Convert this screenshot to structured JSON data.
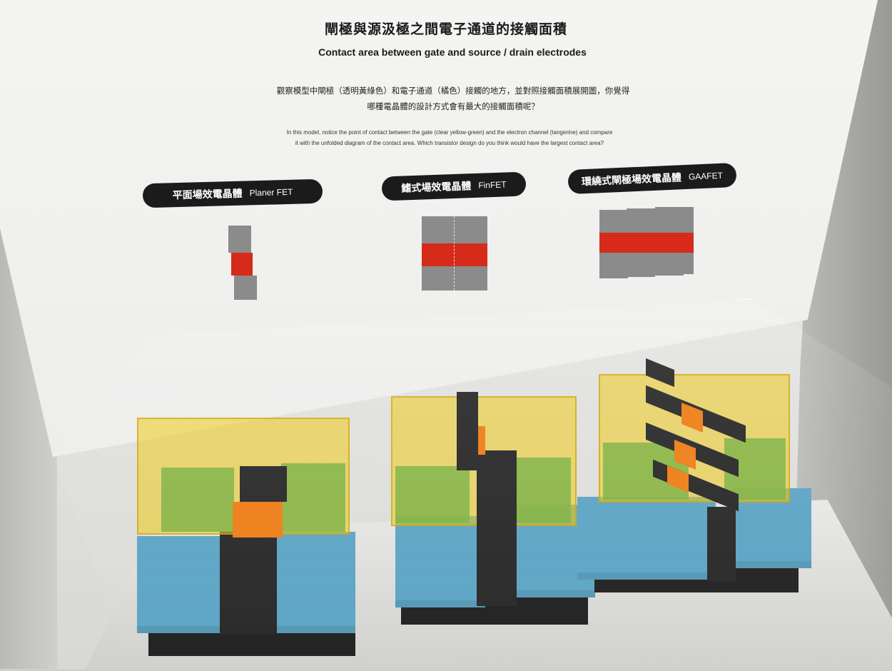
{
  "header": {
    "title_zh": "閘極與源汲極之間電子通道的接觸面積",
    "title_en": "Contact area between gate and source / drain electrodes"
  },
  "description": {
    "zh_line1": "觀察模型中閘極（透明黃綠色）和電子通道（橘色）接觸的地方，並對照接觸面積展開圖，你覺得",
    "zh_line2": "哪種電晶體的設計方式會有最大的接觸面積呢？",
    "en_line1": "In this model, notice the point of contact between the gate (clear yellow-green) and the electron channel (tangerine) and compare",
    "en_line2": "it with the unfolded diagram of the contact area. Which transistor design do you think would have the largest contact area?"
  },
  "labels": [
    {
      "zh": "平面場效電晶體",
      "en": "Planer FET"
    },
    {
      "zh": "鰭式場效電晶體",
      "en": "FinFET"
    },
    {
      "zh": "環繞式閘極場效電晶體",
      "en": "GAAFET"
    }
  ],
  "colors": {
    "diagram_gray": "#8b8b8b",
    "diagram_red": "#d62a1b",
    "gate_yellow": "#ecc60a",
    "channel_orange": "#ee7c14",
    "source_drain_blue": "#5ba3c4"
  }
}
